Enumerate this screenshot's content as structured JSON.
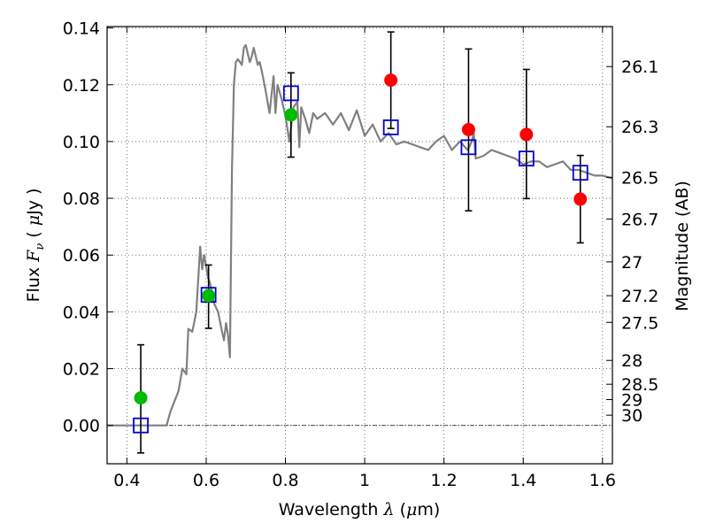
{
  "chart_data": {
    "type": "scatter",
    "xlabel": {
      "prefix": "Wavelength  ",
      "var": "λ",
      "open": " (",
      "unit_mu": "μ",
      "unit_rest": "m)"
    },
    "ylabel": {
      "prefix": "Flux  ",
      "var": "F",
      "sub": "ν",
      "open": "  ( ",
      "unit_mu": "μ",
      "unit_rest": "Jy )"
    },
    "ylabel_right": "Magnitude (AB)",
    "xlim": [
      0.35,
      1.625
    ],
    "ylim": [
      -0.0135,
      0.1405
    ],
    "grid": true,
    "grid_style": "dotted",
    "x_ticks": [
      {
        "value": 0.4,
        "label": "0.4"
      },
      {
        "value": 0.6,
        "label": "0.6"
      },
      {
        "value": 0.8,
        "label": "0.8"
      },
      {
        "value": 1.0,
        "label": "1"
      },
      {
        "value": 1.2,
        "label": "1.2"
      },
      {
        "value": 1.4,
        "label": "1.4"
      },
      {
        "value": 1.6,
        "label": "1.6"
      }
    ],
    "y_ticks": [
      {
        "value": 0.0,
        "label": "0.00"
      },
      {
        "value": 0.02,
        "label": "0.02"
      },
      {
        "value": 0.04,
        "label": "0.04"
      },
      {
        "value": 0.06,
        "label": "0.06"
      },
      {
        "value": 0.08,
        "label": "0.08"
      },
      {
        "value": 0.1,
        "label": "0.10"
      },
      {
        "value": 0.12,
        "label": "0.12"
      },
      {
        "value": 0.14,
        "label": "0.14"
      }
    ],
    "mag_ticks": [
      {
        "flux": 0.1264,
        "label": "26.1"
      },
      {
        "flux": 0.1052,
        "label": "26.3"
      },
      {
        "flux": 0.0874,
        "label": "26.5"
      },
      {
        "flux": 0.0727,
        "label": "26.7"
      },
      {
        "flux": 0.0576,
        "label": "27"
      },
      {
        "flux": 0.0457,
        "label": "27.2"
      },
      {
        "flux": 0.0363,
        "label": "27.5"
      },
      {
        "flux": 0.0229,
        "label": "28"
      },
      {
        "flux": 0.0145,
        "label": "28.5"
      },
      {
        "flux": 0.0091,
        "label": "29"
      },
      {
        "flux": 0.0036,
        "label": "30"
      }
    ],
    "series": [
      {
        "kind": "model_spectrum",
        "color": "#808080",
        "x": [
          0.35,
          0.5,
          0.51,
          0.53,
          0.54,
          0.55,
          0.555,
          0.565,
          0.575,
          0.585,
          0.59,
          0.595,
          0.605,
          0.61,
          0.62,
          0.63,
          0.64,
          0.645,
          0.65,
          0.655,
          0.66,
          0.665,
          0.67,
          0.675,
          0.68,
          0.69,
          0.695,
          0.7,
          0.71,
          0.715,
          0.72,
          0.73,
          0.735,
          0.74,
          0.75,
          0.76,
          0.77,
          0.775,
          0.78,
          0.79,
          0.8,
          0.81,
          0.82,
          0.83,
          0.835,
          0.84,
          0.85,
          0.86,
          0.87,
          0.88,
          0.9,
          0.92,
          0.94,
          0.96,
          0.98,
          1.0,
          1.02,
          1.04,
          1.06,
          1.08,
          1.1,
          1.12,
          1.14,
          1.16,
          1.18,
          1.2,
          1.22,
          1.24,
          1.26,
          1.27,
          1.275,
          1.28,
          1.3,
          1.32,
          1.34,
          1.36,
          1.38,
          1.4,
          1.42,
          1.44,
          1.46,
          1.48,
          1.5,
          1.52,
          1.54,
          1.56,
          1.58,
          1.6,
          1.625
        ],
        "y": [
          0.0,
          0.0,
          0.005,
          0.012,
          0.02,
          0.018,
          0.034,
          0.033,
          0.04,
          0.063,
          0.055,
          0.06,
          0.052,
          0.05,
          0.043,
          0.04,
          0.033,
          0.03,
          0.036,
          0.032,
          0.024,
          0.09,
          0.12,
          0.128,
          0.129,
          0.127,
          0.133,
          0.134,
          0.128,
          0.13,
          0.133,
          0.127,
          0.128,
          0.125,
          0.118,
          0.11,
          0.123,
          0.11,
          0.12,
          0.115,
          0.109,
          0.1,
          0.112,
          0.114,
          0.098,
          0.112,
          0.108,
          0.103,
          0.11,
          0.108,
          0.11,
          0.106,
          0.11,
          0.104,
          0.111,
          0.102,
          0.106,
          0.1,
          0.103,
          0.099,
          0.1,
          0.099,
          0.098,
          0.097,
          0.1,
          0.102,
          0.097,
          0.1,
          0.097,
          0.1,
          0.103,
          0.094,
          0.095,
          0.097,
          0.096,
          0.095,
          0.094,
          0.092,
          0.093,
          0.093,
          0.091,
          0.092,
          0.093,
          0.09,
          0.09,
          0.089,
          0.088,
          0.088,
          0.087
        ]
      },
      {
        "kind": "model_photometry",
        "marker": "open-square",
        "color": "#0000cc",
        "x": [
          0.435,
          0.606,
          0.814,
          1.066,
          1.262,
          1.408,
          1.544
        ],
        "y": [
          0.0,
          0.046,
          0.117,
          0.105,
          0.098,
          0.094,
          0.089
        ]
      },
      {
        "kind": "observed_flux",
        "marker": "filled-circle",
        "x": [
          0.435,
          0.606,
          0.814,
          1.066,
          1.262,
          1.408,
          1.544
        ],
        "y": [
          0.0097,
          0.0457,
          0.1094,
          0.1216,
          0.1042,
          0.1025,
          0.0797
        ],
        "yerr_low": [
          -0.0097,
          0.0342,
          0.0945,
          0.1046,
          0.0756,
          0.0799,
          0.0643
        ],
        "yerr_high": [
          0.0284,
          0.0565,
          0.1242,
          0.1386,
          0.1326,
          0.1254,
          0.0951
        ],
        "colors": [
          "#00bb00",
          "#00bb00",
          "#00bb00",
          "#ff0000",
          "#ff0000",
          "#ff0000",
          "#ff0000"
        ]
      }
    ]
  }
}
